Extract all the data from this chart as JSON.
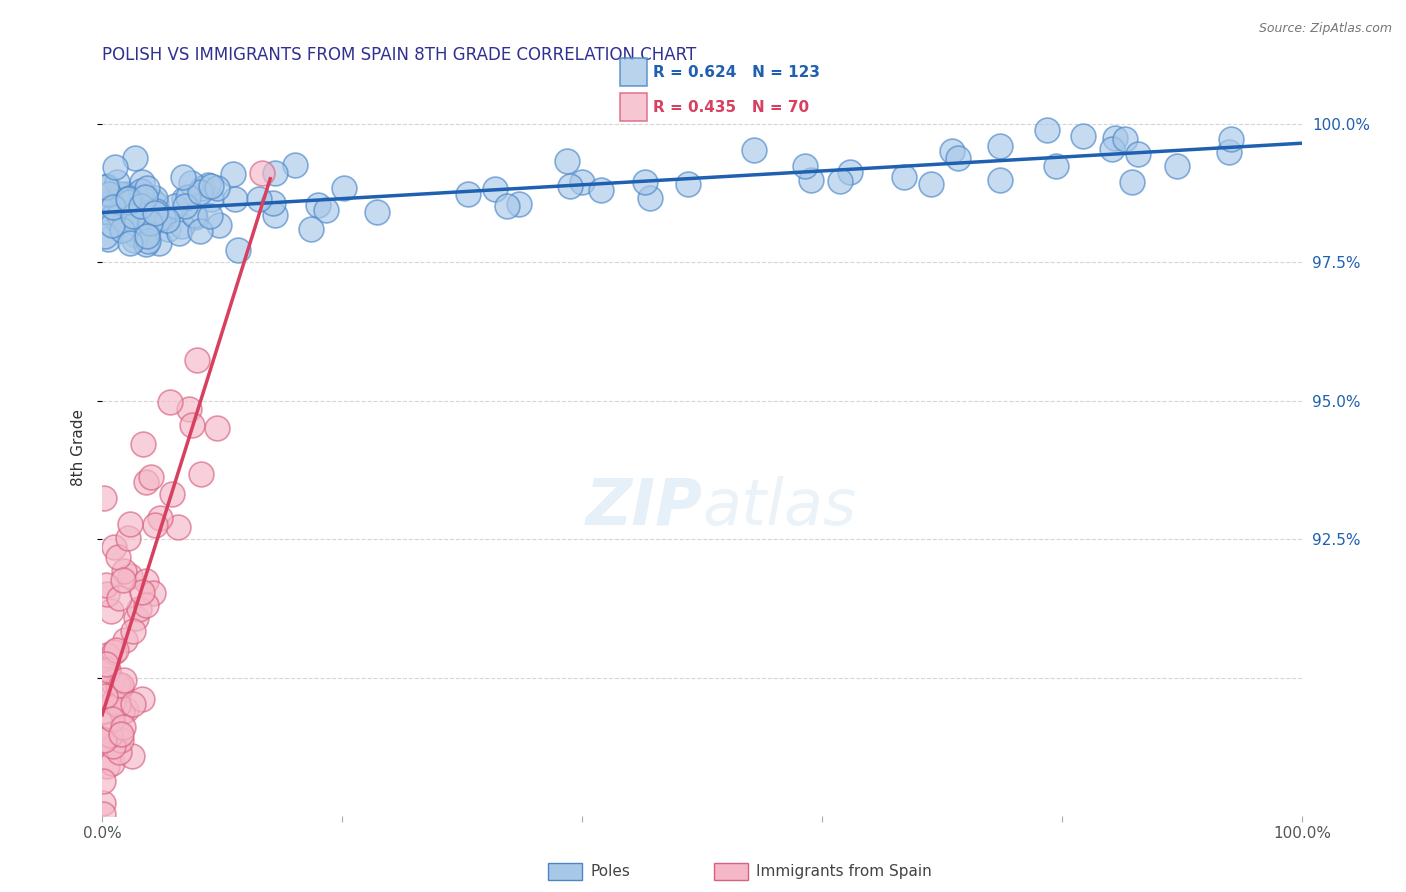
{
  "title": "POLISH VS IMMIGRANTS FROM SPAIN 8TH GRADE CORRELATION CHART",
  "source_text": "Source: ZipAtlas.com",
  "ylabel": "8th Grade",
  "blue_R": 0.624,
  "blue_N": 123,
  "pink_R": 0.435,
  "pink_N": 70,
  "blue_color": "#a8c8e8",
  "blue_edge_color": "#4a86c8",
  "blue_line_color": "#2060b0",
  "pink_color": "#f4b8c8",
  "pink_edge_color": "#d86080",
  "pink_line_color": "#d84060",
  "watermark_text": "ZIPatlas",
  "legend_blue": "Poles",
  "legend_pink": "Immigrants from Spain",
  "yticks": [
    90.0,
    92.5,
    95.0,
    97.5,
    100.0
  ],
  "ytick_labels": [
    "",
    "92.5%",
    "95.0%",
    "97.5%",
    "100.0%"
  ],
  "ylim_min": 87.5,
  "ylim_max": 100.8,
  "xlim_min": 0,
  "xlim_max": 100,
  "title_color": "#303090",
  "tick_color_y": "#2060b0",
  "tick_color_x": "#555555",
  "source_color": "#777777",
  "ylabel_color": "#333333"
}
